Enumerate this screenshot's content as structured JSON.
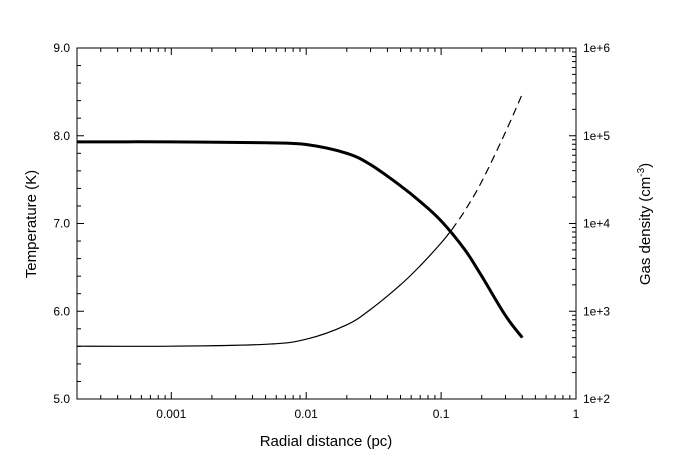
{
  "chart_data": {
    "type": "line",
    "title": "",
    "xlabel": "Radial distance (pc)",
    "ylabel_left": "Temperature (K)",
    "ylabel_right": {
      "prefix": "Gas density (cm",
      "sup": "-3",
      "suffix": ")"
    },
    "x_scale": "log",
    "xlim": [
      0.0002,
      1
    ],
    "ylim_left": [
      5.0,
      9.0
    ],
    "ylim_right": [
      100,
      1000000
    ],
    "y_right_scale": "log",
    "grid": false,
    "x_ticks": [
      {
        "value": 0.001,
        "label": "0.001"
      },
      {
        "value": 0.01,
        "label": "0.01"
      },
      {
        "value": 0.1,
        "label": "0.1"
      },
      {
        "value": 1,
        "label": "1"
      }
    ],
    "y_left_ticks": [
      {
        "value": 5.0,
        "label": "5.0"
      },
      {
        "value": 6.0,
        "label": "6.0"
      },
      {
        "value": 7.0,
        "label": "7.0"
      },
      {
        "value": 8.0,
        "label": "8.0"
      },
      {
        "value": 9.0,
        "label": "9.0"
      }
    ],
    "y_right_ticks": [
      {
        "value": 100,
        "label": "1e+2"
      },
      {
        "value": 1000,
        "label": "1e+3"
      },
      {
        "value": 10000,
        "label": "1e+4"
      },
      {
        "value": 100000,
        "label": "1e+5"
      },
      {
        "value": 1000000,
        "label": "1e+6"
      }
    ],
    "series": [
      {
        "axis": "left",
        "style": "thick-solid",
        "x": [
          0.0002,
          0.001,
          0.005,
          0.01,
          0.02,
          0.03,
          0.05,
          0.07,
          0.1,
          0.15,
          0.2,
          0.3,
          0.4
        ],
        "y": [
          7.93,
          7.93,
          7.92,
          7.9,
          7.8,
          7.67,
          7.43,
          7.25,
          7.03,
          6.7,
          6.4,
          5.95,
          5.7
        ]
      },
      {
        "axis": "right",
        "style": "thin-solid",
        "x": [
          0.0002,
          0.001,
          0.005,
          0.01,
          0.02,
          0.03,
          0.05,
          0.07,
          0.1,
          0.12
        ],
        "y": [
          400,
          400,
          420,
          480,
          700,
          1050,
          2000,
          3300,
          6000,
          8500
        ]
      },
      {
        "axis": "right",
        "style": "dashed",
        "x": [
          0.12,
          0.15,
          0.2,
          0.3,
          0.4
        ],
        "y": [
          8500,
          14000,
          30000,
          110000,
          300000
        ]
      }
    ]
  }
}
